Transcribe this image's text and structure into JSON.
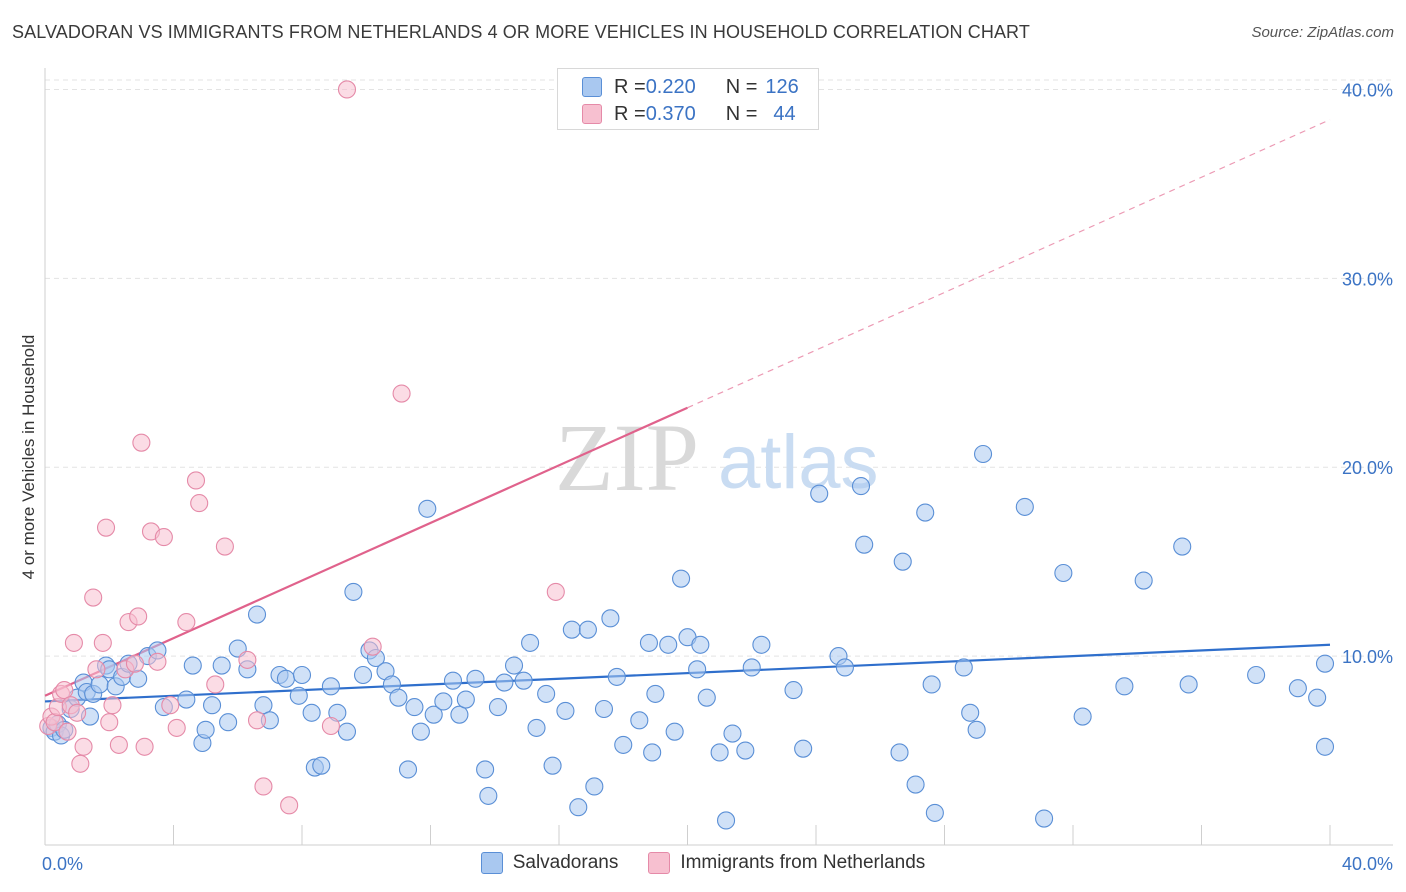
{
  "title": "SALVADORAN VS IMMIGRANTS FROM NETHERLANDS 4 OR MORE VEHICLES IN HOUSEHOLD CORRELATION CHART",
  "source": "Source: ZipAtlas.com",
  "watermark": {
    "zip": "ZIP",
    "atlas": "atlas"
  },
  "legend_top": {
    "rows": [
      {
        "r_label": "R = ",
        "r_value": "0.220",
        "n_label": "N = ",
        "n_value": "126"
      },
      {
        "r_label": "R = ",
        "r_value": "0.370",
        "n_label": "N = ",
        "n_value": "44"
      }
    ]
  },
  "chart_data": {
    "type": "scatter",
    "title": "SALVADORAN VS IMMIGRANTS FROM NETHERLANDS 4 OR MORE VEHICLES IN HOUSEHOLD CORRELATION CHART",
    "xlabel": "",
    "ylabel": "4 or more Vehicles in Household",
    "xlim": [
      0,
      40
    ],
    "ylim": [
      0,
      40.5
    ],
    "x_tick_labels": [
      "0.0%",
      "40.0%"
    ],
    "y_ticks": [
      10,
      20,
      30,
      40
    ],
    "y_tick_labels": [
      "10.0%",
      "20.0%",
      "30.0%",
      "40.0%"
    ],
    "grid": true,
    "legend_position": "top-center",
    "colors": {
      "Salvadorans": {
        "fill": "#a9c8f0",
        "stroke": "#5a8fd6",
        "line": "#2f6fcc"
      },
      "Immigrants from Netherlands": {
        "fill": "#f7c0d0",
        "stroke": "#e58aa8",
        "line": "#e0628c"
      }
    },
    "series": [
      {
        "name": "Salvadorans",
        "R": 0.22,
        "N": 126,
        "trend": {
          "x": [
            0,
            40
          ],
          "y": [
            7.6,
            10.6
          ],
          "dashed_from": null
        },
        "points": [
          [
            0.2,
            6.2
          ],
          [
            0.3,
            6.0
          ],
          [
            0.4,
            6.4
          ],
          [
            0.5,
            5.8
          ],
          [
            0.6,
            6.1
          ],
          [
            0.8,
            7.2
          ],
          [
            1.0,
            7.8
          ],
          [
            1.2,
            8.6
          ],
          [
            1.3,
            8.1
          ],
          [
            1.4,
            6.8
          ],
          [
            1.5,
            8.0
          ],
          [
            1.7,
            8.5
          ],
          [
            1.9,
            9.5
          ],
          [
            2.0,
            9.3
          ],
          [
            2.2,
            8.4
          ],
          [
            2.4,
            8.9
          ],
          [
            2.6,
            9.6
          ],
          [
            2.9,
            8.8
          ],
          [
            3.2,
            10.0
          ],
          [
            3.5,
            10.3
          ],
          [
            3.7,
            7.3
          ],
          [
            4.4,
            7.7
          ],
          [
            4.6,
            9.5
          ],
          [
            4.9,
            5.4
          ],
          [
            5.0,
            6.1
          ],
          [
            5.2,
            7.4
          ],
          [
            5.5,
            9.5
          ],
          [
            5.7,
            6.5
          ],
          [
            6.0,
            10.4
          ],
          [
            6.3,
            9.3
          ],
          [
            6.6,
            12.2
          ],
          [
            6.8,
            7.4
          ],
          [
            7.0,
            6.6
          ],
          [
            7.3,
            9.0
          ],
          [
            7.5,
            8.8
          ],
          [
            7.9,
            7.9
          ],
          [
            8.0,
            9.0
          ],
          [
            8.3,
            7.0
          ],
          [
            8.4,
            4.1
          ],
          [
            8.6,
            4.2
          ],
          [
            8.9,
            8.4
          ],
          [
            9.1,
            7.0
          ],
          [
            9.4,
            6.0
          ],
          [
            9.6,
            13.4
          ],
          [
            9.9,
            9.0
          ],
          [
            10.1,
            10.3
          ],
          [
            10.3,
            9.9
          ],
          [
            10.6,
            9.2
          ],
          [
            10.8,
            8.5
          ],
          [
            11.0,
            7.8
          ],
          [
            11.3,
            4.0
          ],
          [
            11.5,
            7.3
          ],
          [
            11.7,
            6.0
          ],
          [
            11.9,
            17.8
          ],
          [
            12.1,
            6.9
          ],
          [
            12.4,
            7.6
          ],
          [
            12.7,
            8.7
          ],
          [
            12.9,
            6.9
          ],
          [
            13.1,
            7.7
          ],
          [
            13.4,
            8.8
          ],
          [
            13.7,
            4.0
          ],
          [
            13.8,
            2.6
          ],
          [
            14.1,
            7.3
          ],
          [
            14.3,
            8.6
          ],
          [
            14.6,
            9.5
          ],
          [
            14.9,
            8.7
          ],
          [
            15.1,
            10.7
          ],
          [
            15.3,
            6.2
          ],
          [
            15.6,
            8.0
          ],
          [
            15.8,
            4.2
          ],
          [
            16.2,
            7.1
          ],
          [
            16.4,
            11.4
          ],
          [
            16.6,
            2.0
          ],
          [
            16.9,
            11.4
          ],
          [
            17.1,
            3.1
          ],
          [
            17.4,
            7.2
          ],
          [
            17.6,
            12.0
          ],
          [
            17.8,
            8.9
          ],
          [
            18.0,
            5.3
          ],
          [
            18.5,
            6.6
          ],
          [
            18.8,
            10.7
          ],
          [
            18.9,
            4.9
          ],
          [
            19.0,
            8.0
          ],
          [
            19.4,
            10.6
          ],
          [
            19.6,
            6.0
          ],
          [
            19.8,
            14.1
          ],
          [
            20.0,
            11.0
          ],
          [
            20.3,
            9.3
          ],
          [
            20.4,
            10.6
          ],
          [
            20.6,
            7.8
          ],
          [
            21.0,
            4.9
          ],
          [
            21.2,
            1.3
          ],
          [
            21.4,
            5.9
          ],
          [
            21.8,
            5.0
          ],
          [
            22.0,
            9.4
          ],
          [
            22.3,
            10.6
          ],
          [
            23.3,
            8.2
          ],
          [
            23.6,
            5.1
          ],
          [
            24.1,
            18.6
          ],
          [
            24.7,
            10.0
          ],
          [
            24.9,
            9.4
          ],
          [
            25.4,
            19.0
          ],
          [
            25.5,
            15.9
          ],
          [
            26.6,
            4.9
          ],
          [
            26.7,
            15.0
          ],
          [
            27.1,
            3.2
          ],
          [
            27.4,
            17.6
          ],
          [
            27.6,
            8.5
          ],
          [
            27.7,
            1.7
          ],
          [
            28.6,
            9.4
          ],
          [
            28.8,
            7.0
          ],
          [
            29.0,
            6.1
          ],
          [
            29.2,
            20.7
          ],
          [
            30.5,
            17.9
          ],
          [
            31.1,
            1.4
          ],
          [
            31.7,
            14.4
          ],
          [
            32.3,
            6.8
          ],
          [
            33.6,
            8.4
          ],
          [
            34.2,
            14.0
          ],
          [
            35.4,
            15.8
          ],
          [
            35.6,
            8.5
          ],
          [
            37.7,
            9.0
          ],
          [
            39.0,
            8.3
          ],
          [
            39.6,
            7.8
          ],
          [
            40.4,
            9.6
          ],
          [
            41.3,
            5.2
          ]
        ]
      },
      {
        "name": "Immigrants from Netherlands",
        "R": 0.37,
        "N": 44,
        "trend": {
          "x": [
            0,
            40
          ],
          "y": [
            7.9,
            38.4
          ],
          "solid_until_x": 20
        },
        "points": [
          [
            0.1,
            6.3
          ],
          [
            0.2,
            6.8
          ],
          [
            0.3,
            6.5
          ],
          [
            0.4,
            7.3
          ],
          [
            0.5,
            8.0
          ],
          [
            0.6,
            8.2
          ],
          [
            0.7,
            6.0
          ],
          [
            0.8,
            7.4
          ],
          [
            0.9,
            10.7
          ],
          [
            1.0,
            7.0
          ],
          [
            1.1,
            4.3
          ],
          [
            1.2,
            5.2
          ],
          [
            1.5,
            13.1
          ],
          [
            1.6,
            9.3
          ],
          [
            1.8,
            10.7
          ],
          [
            1.9,
            16.8
          ],
          [
            2.0,
            6.5
          ],
          [
            2.1,
            7.4
          ],
          [
            2.3,
            5.3
          ],
          [
            2.5,
            9.3
          ],
          [
            2.6,
            11.8
          ],
          [
            2.8,
            9.6
          ],
          [
            2.9,
            12.1
          ],
          [
            3.0,
            21.3
          ],
          [
            3.1,
            5.2
          ],
          [
            3.3,
            16.6
          ],
          [
            3.5,
            9.7
          ],
          [
            3.7,
            16.3
          ],
          [
            3.9,
            7.4
          ],
          [
            4.1,
            6.2
          ],
          [
            4.4,
            11.8
          ],
          [
            4.7,
            19.3
          ],
          [
            4.8,
            18.1
          ],
          [
            5.3,
            8.5
          ],
          [
            5.6,
            15.8
          ],
          [
            6.3,
            9.8
          ],
          [
            6.6,
            6.6
          ],
          [
            6.8,
            3.1
          ],
          [
            7.6,
            2.1
          ],
          [
            8.9,
            6.3
          ],
          [
            9.4,
            40.0
          ],
          [
            10.2,
            10.5
          ],
          [
            11.1,
            23.9
          ],
          [
            15.9,
            13.4
          ]
        ]
      }
    ]
  },
  "bottom_legend": [
    "Salvadorans",
    "Immigrants from Netherlands"
  ]
}
